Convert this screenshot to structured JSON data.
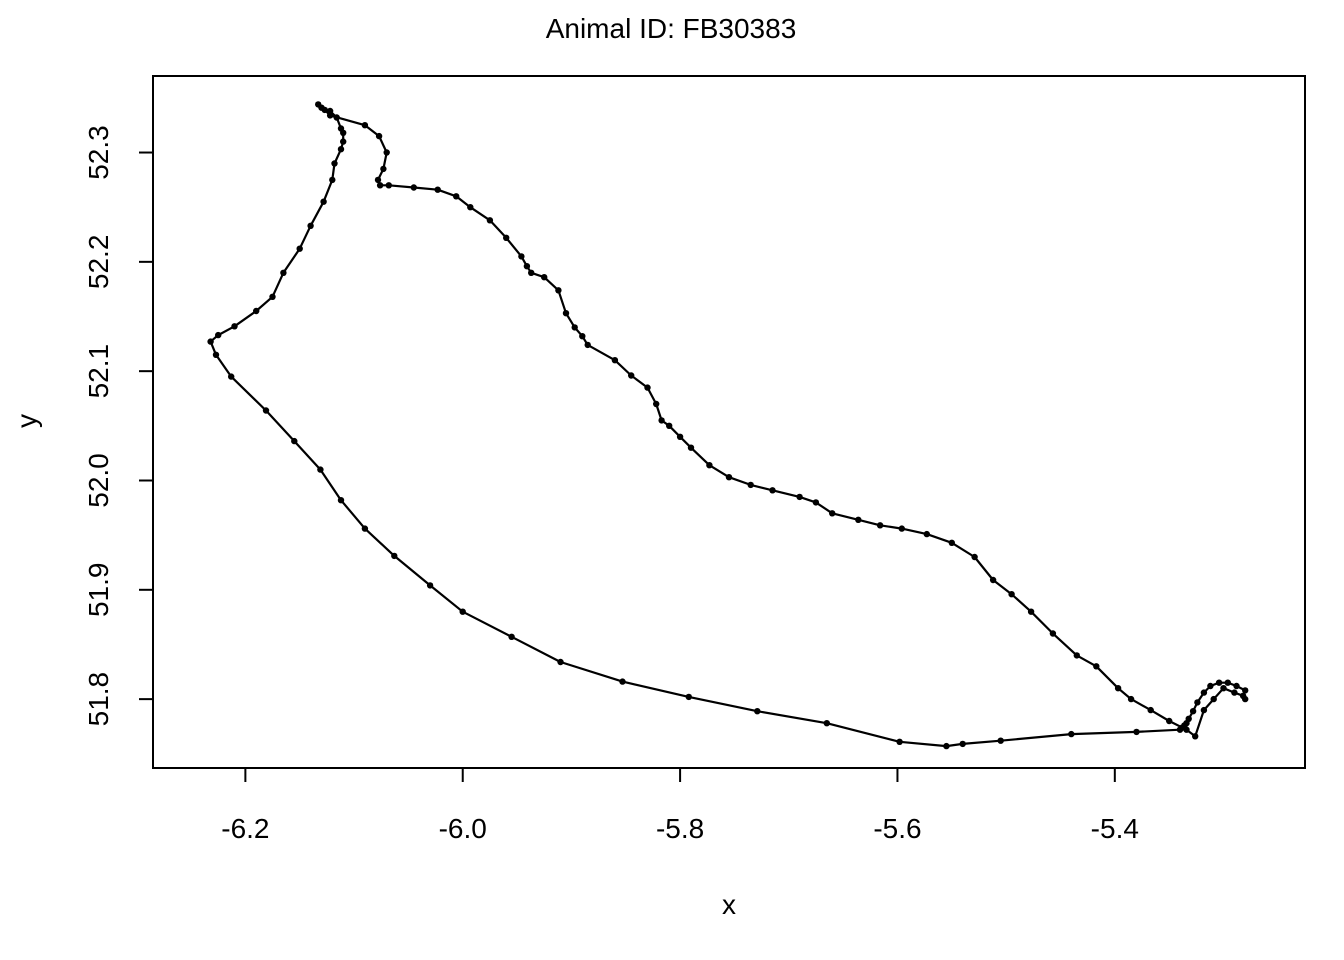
{
  "chart_data": {
    "type": "line",
    "title": "Animal ID: FB30383",
    "xlabel": "x",
    "ylabel": "y",
    "xlim": [
      -6.285,
      -5.225
    ],
    "ylim": [
      51.737,
      52.37
    ],
    "x_ticks": [
      -6.2,
      -6.0,
      -5.8,
      -5.6,
      -5.4
    ],
    "x_tick_labels": [
      "-6.2",
      "-6.0",
      "-5.8",
      "-5.6",
      "-5.4"
    ],
    "y_ticks": [
      51.8,
      51.9,
      52.0,
      52.1,
      52.2,
      52.3
    ],
    "y_tick_labels": [
      "51.8",
      "51.9",
      "52.0",
      "52.1",
      "52.2",
      "52.3"
    ],
    "grid": false,
    "legend": "none",
    "series": [
      {
        "color": "#000000",
        "x": [
          -5.28,
          -5.288,
          -5.296,
          -5.304,
          -5.312,
          -5.318,
          -5.324,
          -5.328,
          -5.332,
          -5.334,
          -5.336,
          -5.338,
          -5.34,
          -5.38,
          -5.44,
          -5.505,
          -5.54,
          -5.555,
          -5.598,
          -5.665,
          -5.729,
          -5.792,
          -5.853,
          -5.91,
          -5.955,
          -6.0,
          -6.03,
          -6.063,
          -6.09,
          -6.112,
          -6.131,
          -6.155,
          -6.181,
          -6.213,
          -6.227,
          -6.232,
          -6.225,
          -6.21,
          -6.19,
          -6.175,
          -6.165,
          -6.15,
          -6.14,
          -6.128,
          -6.12,
          -6.118,
          -6.112,
          -6.11,
          -6.11,
          -6.112,
          -6.116,
          -6.122,
          -6.13,
          -6.133,
          -6.127,
          -6.122,
          -6.09,
          -6.077,
          -6.07,
          -6.073,
          -6.078,
          -6.076,
          -6.068,
          -6.045,
          -6.023,
          -6.006,
          -5.993,
          -5.975,
          -5.96,
          -5.946,
          -5.941,
          -5.937,
          -5.925,
          -5.912,
          -5.905,
          -5.897,
          -5.89,
          -5.885,
          -5.86,
          -5.845,
          -5.83,
          -5.822,
          -5.817,
          -5.81,
          -5.8,
          -5.79,
          -5.773,
          -5.755,
          -5.735,
          -5.715,
          -5.69,
          -5.675,
          -5.66,
          -5.636,
          -5.616,
          -5.596,
          -5.573,
          -5.55,
          -5.529,
          -5.512,
          -5.495,
          -5.477,
          -5.457,
          -5.435,
          -5.417,
          -5.397,
          -5.385,
          -5.367,
          -5.35,
          -5.334,
          -5.326,
          -5.318,
          -5.309,
          -5.3,
          -5.29,
          -5.282,
          -5.28
        ]
      }
    ],
    "y_values": [
      51.808,
      51.812,
      51.815,
      51.815,
      51.812,
      51.806,
      51.797,
      51.789,
      51.782,
      51.778,
      51.776,
      51.774,
      51.772,
      51.77,
      51.768,
      51.762,
      51.759,
      51.757,
      51.761,
      51.778,
      51.789,
      51.802,
      51.816,
      51.834,
      51.857,
      51.88,
      51.904,
      51.931,
      51.956,
      51.982,
      52.01,
      52.036,
      52.064,
      52.095,
      52.115,
      52.127,
      52.133,
      52.141,
      52.155,
      52.168,
      52.19,
      52.212,
      52.233,
      52.255,
      52.275,
      52.29,
      52.303,
      52.31,
      52.318,
      52.322,
      52.332,
      52.338,
      52.341,
      52.344,
      52.339,
      52.334,
      52.325,
      52.315,
      52.3,
      52.285,
      52.275,
      52.27,
      52.27,
      52.268,
      52.266,
      52.26,
      52.25,
      52.238,
      52.222,
      52.205,
      52.196,
      52.19,
      52.186,
      52.174,
      52.153,
      52.14,
      52.132,
      52.124,
      52.11,
      52.096,
      52.085,
      52.07,
      52.055,
      52.05,
      52.04,
      52.03,
      52.014,
      52.003,
      51.996,
      51.991,
      51.985,
      51.98,
      51.97,
      51.964,
      51.959,
      51.956,
      51.951,
      51.943,
      51.93,
      51.909,
      51.896,
      51.88,
      51.86,
      51.84,
      51.83,
      51.81,
      51.8,
      51.79,
      51.78,
      51.772,
      51.766,
      51.79,
      51.8,
      51.81,
      51.806,
      51.803,
      51.8
    ]
  }
}
